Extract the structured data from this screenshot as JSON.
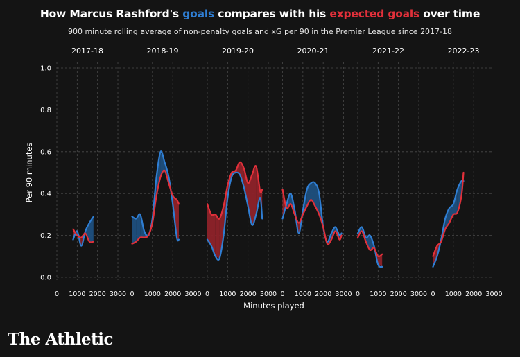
{
  "title": {
    "prefix": "How Marcus Rashford's ",
    "goals": "goals",
    "middle": " compares with his ",
    "xg": "expected goals",
    "suffix": " over time"
  },
  "subtitle": "900 minute rolling average of non-penalty goals and xG per 90 in the Premier League since 2017-18",
  "brand": "The Athletic",
  "colors": {
    "goals": "#2f7ed3",
    "xg": "#e1303a",
    "goals_fill": "#1d4f7e",
    "xg_fill": "#8e2229",
    "grid": "#4a4a4a",
    "text": "#ffffff"
  },
  "chart_data": {
    "type": "line",
    "ylabel": "Per 90 minutes",
    "xlabel": "Minutes played",
    "ylim": [
      0,
      1.0
    ],
    "yticks": [
      "0.0",
      "0.2",
      "0.4",
      "0.6",
      "0.8",
      "1.0"
    ],
    "ytick_values": [
      0,
      0.2,
      0.4,
      0.6,
      0.8,
      1.0
    ],
    "xlim": [
      0,
      3000
    ],
    "xticks": [
      "0",
      "1000",
      "2000",
      "3000"
    ],
    "xtick_values": [
      0,
      1000,
      2000,
      3000
    ],
    "grid": true,
    "series_names": [
      "goals",
      "expected goals"
    ],
    "panels": [
      {
        "season": "2017-18",
        "x": [
          800,
          1000,
          1200,
          1400,
          1600,
          1800
        ],
        "goals": [
          0.18,
          0.22,
          0.15,
          0.22,
          0.26,
          0.29
        ],
        "xg": [
          0.23,
          0.2,
          0.19,
          0.21,
          0.17,
          0.17
        ]
      },
      {
        "season": "2018-19",
        "x": [
          0,
          200,
          400,
          600,
          800,
          1000,
          1200,
          1400,
          1600,
          1800,
          2000,
          2200,
          2300
        ],
        "goals": [
          0.29,
          0.28,
          0.3,
          0.22,
          0.2,
          0.28,
          0.48,
          0.6,
          0.55,
          0.48,
          0.35,
          0.19,
          0.18
        ],
        "xg": [
          0.16,
          0.17,
          0.19,
          0.19,
          0.2,
          0.26,
          0.39,
          0.48,
          0.51,
          0.45,
          0.39,
          0.37,
          0.35
        ]
      },
      {
        "season": "2019-20",
        "x": [
          0,
          200,
          400,
          600,
          800,
          1000,
          1200,
          1400,
          1600,
          1800,
          2000,
          2200,
          2400,
          2600,
          2700
        ],
        "goals": [
          0.18,
          0.15,
          0.1,
          0.09,
          0.2,
          0.38,
          0.48,
          0.5,
          0.49,
          0.43,
          0.34,
          0.25,
          0.3,
          0.38,
          0.28
        ],
        "xg": [
          0.35,
          0.3,
          0.3,
          0.28,
          0.34,
          0.44,
          0.5,
          0.51,
          0.55,
          0.52,
          0.45,
          0.49,
          0.53,
          0.41,
          0.42
        ]
      },
      {
        "season": "2020-21",
        "x": [
          0,
          200,
          400,
          600,
          800,
          1000,
          1200,
          1400,
          1600,
          1800,
          2000,
          2200,
          2400,
          2600,
          2800,
          2900
        ],
        "goals": [
          0.28,
          0.35,
          0.4,
          0.32,
          0.21,
          0.32,
          0.42,
          0.45,
          0.45,
          0.4,
          0.24,
          0.17,
          0.21,
          0.24,
          0.2,
          0.21
        ],
        "xg": [
          0.42,
          0.33,
          0.35,
          0.3,
          0.26,
          0.3,
          0.34,
          0.37,
          0.34,
          0.3,
          0.24,
          0.16,
          0.18,
          0.22,
          0.18,
          0.2
        ]
      },
      {
        "season": "2021-22",
        "x": [
          0,
          200,
          400,
          600,
          800,
          1000,
          1200
        ],
        "goals": [
          0.21,
          0.24,
          0.19,
          0.2,
          0.15,
          0.06,
          0.05
        ],
        "xg": [
          0.19,
          0.22,
          0.17,
          0.13,
          0.14,
          0.1,
          0.11
        ]
      },
      {
        "season": "2022-23",
        "x": [
          0,
          200,
          400,
          600,
          800,
          1000,
          1200,
          1400,
          1500
        ],
        "goals": [
          0.05,
          0.1,
          0.18,
          0.28,
          0.33,
          0.35,
          0.42,
          0.46,
          0.46
        ],
        "xg": [
          0.1,
          0.15,
          0.17,
          0.23,
          0.26,
          0.3,
          0.31,
          0.39,
          0.5
        ]
      }
    ]
  }
}
